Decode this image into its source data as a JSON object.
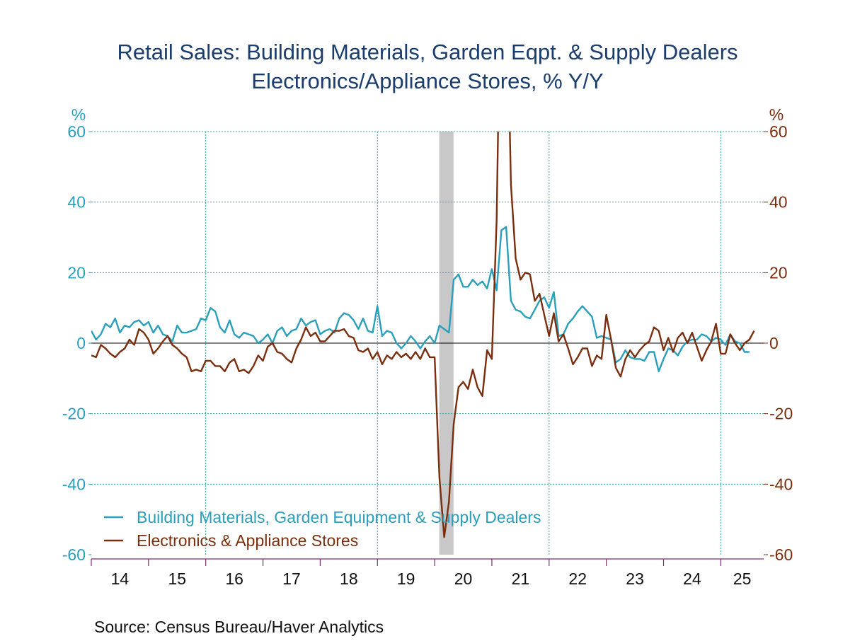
{
  "chart_data": {
    "type": "line",
    "title": "Retail Sales: Building Materials, Garden Eqpt. & Supply Dealers",
    "subtitle": "Electronics/Appliance Stores, % Y/Y",
    "left_unit": "%",
    "right_unit": "%",
    "ylim": [
      -60,
      60
    ],
    "yticks": [
      60,
      40,
      20,
      0,
      -20,
      -40,
      -60
    ],
    "xlim": [
      2014.0,
      2025.75
    ],
    "xtick_labels": [
      "14",
      "15",
      "16",
      "17",
      "18",
      "19",
      "20",
      "21",
      "22",
      "23",
      "24",
      "25"
    ],
    "recession": [
      2020.08,
      2020.33
    ],
    "legend_position": "bottom-left",
    "source": "Source:  Census Bureau/Haver Analytics",
    "series": [
      {
        "name": "Building Materials, Garden Equipment & Supply Dealers",
        "color": "#2a9fbc",
        "x_start": 2014.0,
        "step": 0.08333,
        "values": [
          3.5,
          1.0,
          2.5,
          5.5,
          4.5,
          7.0,
          3.0,
          5.0,
          4.5,
          6.0,
          6.5,
          5.0,
          6.0,
          3.0,
          5.0,
          2.5,
          2.0,
          0.5,
          5.0,
          3.0,
          3.0,
          3.5,
          4.0,
          7.0,
          6.5,
          10.0,
          9.0,
          4.5,
          3.0,
          6.5,
          2.5,
          1.5,
          3.0,
          2.5,
          2.0,
          0.0,
          1.0,
          2.5,
          0.0,
          3.5,
          4.5,
          2.0,
          3.5,
          4.0,
          7.0,
          5.0,
          6.0,
          6.5,
          2.5,
          3.5,
          4.0,
          3.0,
          7.0,
          8.5,
          8.0,
          6.5,
          4.0,
          7.0,
          3.5,
          3.0,
          10.5,
          2.0,
          3.5,
          3.0,
          0.0,
          -1.5,
          0.0,
          2.0,
          0.5,
          -1.5,
          0.5,
          2.0,
          0.0,
          5.0,
          4.0,
          3.0,
          18.0,
          19.5,
          16.0,
          16.0,
          18.0,
          16.5,
          17.5,
          15.5,
          21.0,
          15.0,
          32.0,
          33.0,
          12.0,
          9.5,
          9.0,
          7.5,
          7.0,
          9.5,
          12.0,
          13.0,
          10.0,
          14.5,
          2.0,
          2.5,
          5.5,
          7.0,
          9.0,
          10.5,
          9.0,
          7.5,
          1.5,
          2.0,
          1.5,
          1.0,
          -5.5,
          -4.5,
          -2.0,
          -4.0,
          -4.5,
          -4.5,
          -5.0,
          -2.5,
          -2.5,
          -8.0,
          -4.5,
          -1.5,
          -2.0,
          -3.5,
          -1.0,
          0.5,
          1.0,
          1.0,
          2.5,
          2.0,
          0.5,
          1.5,
          1.0,
          -0.5,
          2.5,
          0.5,
          0.0,
          -2.5,
          -2.5
        ]
      },
      {
        "name": "Electronics & Appliance Stores",
        "color": "#7a2e0e",
        "x_start": 2014.0,
        "step": 0.08333,
        "values": [
          -3.5,
          -4.0,
          -0.5,
          -1.5,
          -3.0,
          -4.0,
          -2.5,
          -1.5,
          1.0,
          -0.5,
          4.0,
          3.0,
          1.0,
          -3.0,
          -1.5,
          0.5,
          2.0,
          -0.5,
          -1.5,
          -3.0,
          -4.0,
          -8.0,
          -7.5,
          -8.0,
          -5.0,
          -5.0,
          -6.5,
          -6.5,
          -8.0,
          -5.5,
          -4.5,
          -8.0,
          -7.5,
          -8.5,
          -6.5,
          -3.5,
          -5.0,
          -1.0,
          0.0,
          -2.5,
          -3.0,
          -4.5,
          -5.5,
          -1.5,
          1.0,
          4.5,
          2.0,
          3.0,
          0.5,
          0.5,
          2.0,
          3.5,
          3.5,
          4.0,
          2.0,
          1.5,
          -2.0,
          -2.5,
          -1.5,
          -4.5,
          -2.5,
          -6.0,
          -3.5,
          -4.5,
          -2.5,
          -4.0,
          -3.0,
          -4.5,
          -2.5,
          -4.5,
          -1.5,
          -4.0,
          -4.0,
          -38.0,
          -55.0,
          -45.0,
          -23.0,
          -12.5,
          -11.0,
          -13.0,
          -7.5,
          -12.5,
          -15.0,
          -2.0,
          -4.5,
          35.0,
          120.0,
          110.0,
          45.0,
          24.0,
          18.0,
          20.0,
          19.5,
          12.0,
          14.0,
          8.0,
          2.0,
          8.5,
          0.5,
          2.5,
          -1.5,
          -6.0,
          -4.0,
          -1.5,
          -1.5,
          -6.5,
          -3.5,
          -4.5,
          8.0,
          1.0,
          -7.0,
          -9.5,
          -4.5,
          -2.0,
          -4.0,
          -2.0,
          -0.5,
          0.5,
          4.5,
          3.5,
          -2.0,
          1.5,
          -2.5,
          1.5,
          3.0,
          0.0,
          3.0,
          -1.0,
          -5.0,
          -2.0,
          0.5,
          5.5,
          -3.0,
          -3.0,
          2.5,
          0.0,
          -2.0,
          0.0,
          1.0,
          3.5
        ]
      }
    ]
  }
}
